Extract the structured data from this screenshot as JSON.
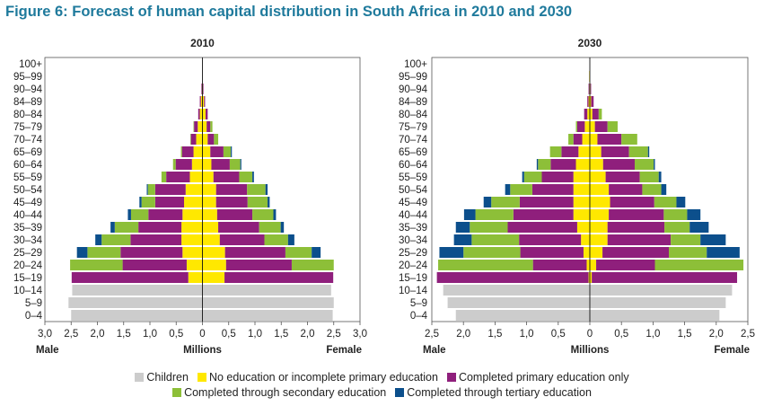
{
  "title": "Figure 6: Forecast of human capital distribution in South Africa in 2010 and 2030",
  "legend": [
    {
      "label": "Children",
      "color": "#cccccc"
    },
    {
      "label": "No education or incomplete primary education",
      "color": "#ffe800"
    },
    {
      "label": "Completed primary education only",
      "color": "#8f1f7c"
    },
    {
      "label": "Completed through secondary education",
      "color": "#8dbf38"
    },
    {
      "label": "Completed through tertiary education",
      "color": "#0c4f8c"
    }
  ],
  "chart_data": [
    {
      "type": "bar",
      "title": "2010",
      "xlabel": "Millions",
      "left_label": "Male",
      "right_label": "Female",
      "xlim": [
        -3.0,
        3.0
      ],
      "x_ticks": [
        "3,0",
        "2,5",
        "2,0",
        "1,5",
        "1,0",
        "0,5",
        "0",
        "0,5",
        "1,0",
        "1,5",
        "2,0",
        "2,5",
        "3,0"
      ],
      "categories": [
        "100+",
        "95–99",
        "90–94",
        "84–89",
        "80–84",
        "75–79",
        "70–74",
        "65–69",
        "60–64",
        "55–59",
        "50–54",
        "45–49",
        "40–44",
        "35–39",
        "30–34",
        "25–29",
        "20–24",
        "15–19",
        "10–14",
        "5–9",
        "0–4"
      ],
      "series": [
        {
          "name": "Children",
          "male": [
            0,
            0,
            0,
            0,
            0,
            0,
            0,
            0,
            0,
            0,
            0,
            0,
            0,
            0,
            0,
            0,
            0,
            0,
            2.48,
            2.55,
            2.5
          ],
          "female": [
            0,
            0,
            0,
            0,
            0,
            0,
            0,
            0,
            0,
            0,
            0,
            0,
            0,
            0,
            0,
            0,
            0,
            0,
            2.45,
            2.5,
            2.48
          ]
        },
        {
          "name": "No education or incomplete primary education",
          "male": [
            0,
            0,
            0.01,
            0.03,
            0.05,
            0.09,
            0.12,
            0.17,
            0.2,
            0.24,
            0.32,
            0.35,
            0.38,
            0.4,
            0.4,
            0.38,
            0.3,
            0.27,
            0,
            0,
            0
          ],
          "female": [
            0,
            0,
            0.01,
            0.03,
            0.06,
            0.08,
            0.1,
            0.15,
            0.17,
            0.21,
            0.26,
            0.26,
            0.28,
            0.3,
            0.33,
            0.43,
            0.45,
            0.42,
            0,
            0,
            0
          ]
        },
        {
          "name": "Completed primary education only",
          "male": [
            0,
            0,
            0.01,
            0.02,
            0.03,
            0.07,
            0.1,
            0.22,
            0.31,
            0.45,
            0.58,
            0.55,
            0.65,
            0.82,
            0.97,
            1.18,
            1.22,
            2.22,
            0,
            0,
            0
          ],
          "female": [
            0,
            0,
            0.01,
            0.02,
            0.04,
            0.07,
            0.12,
            0.25,
            0.35,
            0.49,
            0.59,
            0.6,
            0.67,
            0.78,
            0.85,
            1.15,
            1.25,
            2.07,
            0,
            0,
            0
          ]
        },
        {
          "name": "Completed through secondary education",
          "male": [
            0,
            0,
            0,
            0,
            0,
            0.01,
            0.01,
            0.02,
            0.05,
            0.09,
            0.14,
            0.26,
            0.33,
            0.45,
            0.55,
            0.63,
            1.0,
            0,
            0,
            0,
            0
          ],
          "female": [
            0,
            0,
            0,
            0,
            0,
            0.04,
            0.08,
            0.14,
            0.2,
            0.25,
            0.35,
            0.38,
            0.4,
            0.41,
            0.45,
            0.5,
            0.8,
            0,
            0,
            0,
            0
          ]
        },
        {
          "name": "Completed through tertiary education",
          "male": [
            0,
            0,
            0,
            0,
            0,
            0,
            0,
            0,
            0,
            0,
            0.02,
            0.04,
            0.06,
            0.08,
            0.12,
            0.2,
            0,
            0,
            0,
            0,
            0
          ],
          "female": [
            0,
            0,
            0,
            0,
            0,
            0,
            0,
            0.02,
            0.02,
            0.03,
            0.04,
            0.04,
            0.05,
            0.06,
            0.12,
            0.17,
            0,
            0,
            0,
            0,
            0
          ]
        }
      ]
    },
    {
      "type": "bar",
      "title": "2030",
      "xlabel": "Millions",
      "left_label": "Male",
      "right_label": "Female",
      "xlim": [
        -2.5,
        2.5
      ],
      "x_ticks": [
        "2,5",
        "2,0",
        "1,5",
        "1,0",
        "0,5",
        "0",
        "0,5",
        "1,0",
        "1,5",
        "2,0",
        "2,5"
      ],
      "categories": [
        "100+",
        "95–99",
        "90–94",
        "84–89",
        "80–84",
        "75–79",
        "70–74",
        "65–69",
        "60–64",
        "55–59",
        "50–54",
        "45–49",
        "40–44",
        "35–39",
        "30–34",
        "25–29",
        "20–24",
        "15–19",
        "10–14",
        "5–9",
        "0–4"
      ],
      "series": [
        {
          "name": "Children",
          "male": [
            0,
            0,
            0,
            0,
            0,
            0,
            0,
            0,
            0,
            0,
            0,
            0,
            0,
            0,
            0,
            0,
            0,
            0,
            2.32,
            2.25,
            2.12
          ],
          "female": [
            0,
            0,
            0,
            0,
            0,
            0,
            0,
            0,
            0,
            0,
            0,
            0,
            0,
            0,
            0,
            0,
            0,
            0,
            2.25,
            2.15,
            2.05
          ]
        },
        {
          "name": "No education or incomplete primary education",
          "male": [
            0,
            0.01,
            0.01,
            0.02,
            0.04,
            0.08,
            0.12,
            0.18,
            0.22,
            0.26,
            0.26,
            0.26,
            0.26,
            0.2,
            0.14,
            0.1,
            0.05,
            0.02,
            0,
            0,
            0
          ],
          "female": [
            0,
            0,
            0.01,
            0.02,
            0.04,
            0.08,
            0.12,
            0.18,
            0.21,
            0.25,
            0.3,
            0.32,
            0.3,
            0.28,
            0.28,
            0.2,
            0.1,
            0.03,
            0,
            0,
            0
          ]
        },
        {
          "name": "Completed primary education only",
          "male": [
            0,
            0,
            0.01,
            0.02,
            0.05,
            0.12,
            0.14,
            0.27,
            0.4,
            0.5,
            0.65,
            0.85,
            0.95,
            1.1,
            0.98,
            1.0,
            0.85,
            2.4,
            0,
            0,
            0
          ],
          "female": [
            0,
            0,
            0.01,
            0.04,
            0.1,
            0.2,
            0.38,
            0.44,
            0.5,
            0.54,
            0.53,
            0.7,
            0.87,
            0.9,
            1.0,
            1.05,
            0.93,
            2.3,
            0,
            0,
            0
          ]
        },
        {
          "name": "Completed through secondary education",
          "male": [
            0,
            0,
            0,
            0,
            0,
            0.02,
            0.08,
            0.18,
            0.2,
            0.28,
            0.35,
            0.45,
            0.6,
            0.6,
            0.75,
            0.9,
            1.5,
            0,
            0,
            0,
            0
          ],
          "female": [
            0,
            0,
            0,
            0,
            0.05,
            0.16,
            0.25,
            0.3,
            0.3,
            0.3,
            0.3,
            0.35,
            0.37,
            0.4,
            0.47,
            0.6,
            1.4,
            0,
            0,
            0,
            0
          ]
        },
        {
          "name": "Completed through tertiary education",
          "male": [
            0,
            0,
            0,
            0,
            0,
            0,
            0,
            0,
            0.02,
            0.03,
            0.08,
            0.12,
            0.18,
            0.22,
            0.28,
            0.38,
            0,
            0,
            0,
            0,
            0
          ],
          "female": [
            0,
            0,
            0,
            0,
            0,
            0,
            0,
            0.02,
            0.02,
            0.04,
            0.08,
            0.14,
            0.21,
            0.3,
            0.4,
            0.52,
            0,
            0,
            0,
            0,
            0
          ]
        }
      ]
    }
  ]
}
